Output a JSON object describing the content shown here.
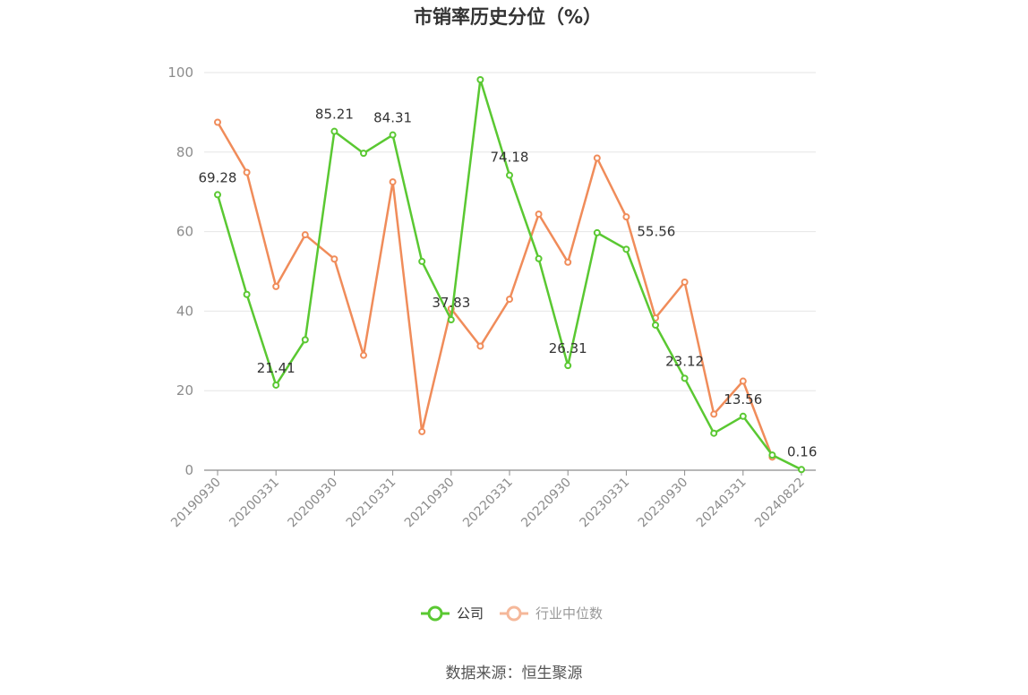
{
  "chart_data": {
    "type": "line",
    "title": "市销率历史分位（%）",
    "xlabel": "",
    "ylabel": "",
    "ylim": [
      0,
      100
    ],
    "yticks": [
      "0",
      "20",
      "40",
      "60",
      "80",
      "100"
    ],
    "x": [
      "20190930",
      "20191231",
      "20200331",
      "20200630",
      "20200930",
      "20201231",
      "20210331",
      "20210630",
      "20210930",
      "20211231",
      "20220331",
      "20220630",
      "20220930",
      "20221231",
      "20230331",
      "20230630",
      "20230930",
      "20231231",
      "20240331",
      "20240630",
      "20240822"
    ],
    "xtick_labels": [
      "20190930",
      "20200331",
      "20200930",
      "20210331",
      "20210930",
      "20220331",
      "20220930",
      "20230331",
      "20230930",
      "20240331",
      "20240822"
    ],
    "grid": true,
    "legend_position": "bottom-center",
    "series": [
      {
        "name": "公司",
        "color": "#5ac832",
        "values": [
          69.28,
          44.2,
          21.41,
          32.8,
          85.21,
          79.7,
          84.31,
          52.5,
          37.83,
          98.2,
          74.18,
          53.2,
          26.31,
          59.7,
          55.56,
          36.5,
          23.12,
          9.3,
          13.56,
          3.8,
          0.16
        ]
      },
      {
        "name": "行业中位数",
        "color": "#f08c5a",
        "values": [
          87.5,
          74.9,
          46.2,
          59.2,
          53.1,
          28.9,
          72.5,
          9.7,
          40.6,
          31.2,
          43.0,
          64.4,
          52.3,
          78.5,
          63.7,
          38.3,
          47.3,
          14.1,
          22.4,
          3.3,
          null
        ]
      }
    ],
    "data_labels": [
      {
        "series": 0,
        "index": 0,
        "text": "69.28"
      },
      {
        "series": 0,
        "index": 2,
        "text": "21.41"
      },
      {
        "series": 0,
        "index": 4,
        "text": "85.21"
      },
      {
        "series": 0,
        "index": 6,
        "text": "84.31"
      },
      {
        "series": 0,
        "index": 8,
        "text": "37.83"
      },
      {
        "series": 0,
        "index": 10,
        "text": "74.18"
      },
      {
        "series": 0,
        "index": 12,
        "text": "26.31"
      },
      {
        "series": 0,
        "index": 14,
        "text": "55.56"
      },
      {
        "series": 0,
        "index": 16,
        "text": "23.12"
      },
      {
        "series": 0,
        "index": 18,
        "text": "13.56"
      },
      {
        "series": 0,
        "index": 20,
        "text": "0.16"
      }
    ]
  },
  "footer": {
    "source": "数据来源：恒生聚源"
  },
  "colors": {
    "company": "#5ac832",
    "industry": "#f08c5a",
    "industry_legend": "#f5b89a",
    "grid": "#e6e6e6",
    "axis": "#8c8c8c"
  }
}
